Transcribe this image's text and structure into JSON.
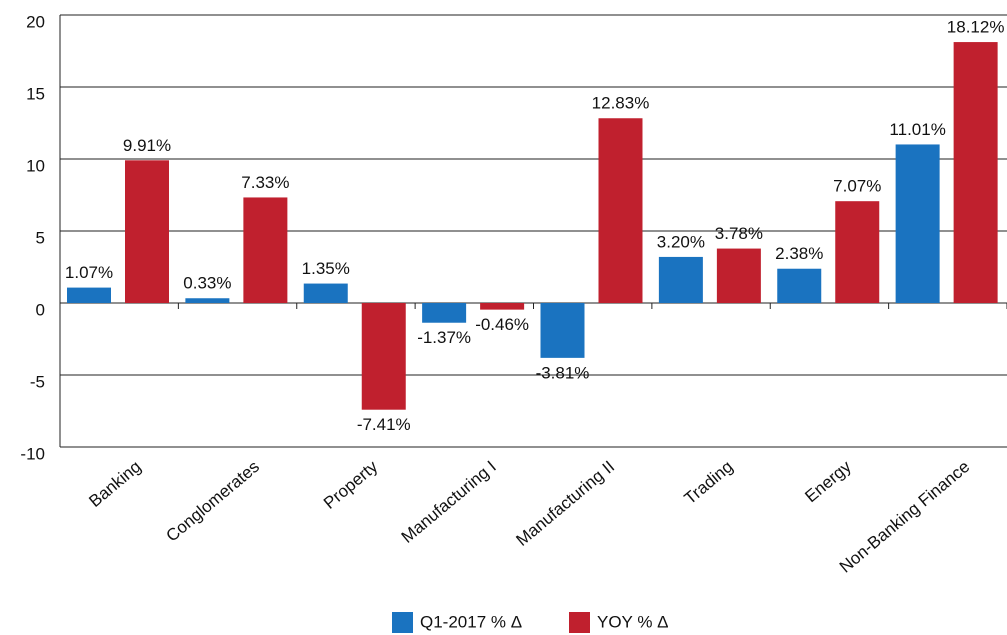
{
  "chart_data": {
    "type": "bar",
    "categories": [
      "Banking",
      "Conglomerates",
      "Property",
      "Manufacturing I",
      "Manufacturing II",
      "Trading",
      "Energy",
      "Non-Banking Finance"
    ],
    "series": [
      {
        "name": "Q1-2017 % Δ",
        "color": "#1a73c0",
        "values": [
          1.07,
          0.33,
          1.35,
          -1.37,
          -3.81,
          3.2,
          2.38,
          11.01
        ],
        "value_labels": [
          "1.07%",
          "0.33%",
          "1.35%",
          "-1.37%",
          "-3.81%",
          "3.20%",
          "2.38%",
          "11.01%"
        ]
      },
      {
        "name": "YOY % Δ",
        "color": "#c0202e",
        "values": [
          9.91,
          7.33,
          -7.41,
          -0.46,
          12.83,
          3.78,
          7.07,
          18.12
        ],
        "value_labels": [
          "9.91%",
          "7.33%",
          "-7.41%",
          "-0.46%",
          "12.83%",
          "3.78%",
          "7.07%",
          "18.12%"
        ]
      }
    ],
    "ylim": [
      -10,
      20
    ],
    "yticks": [
      -10,
      -5,
      0,
      5,
      10,
      15,
      20
    ],
    "grid": true,
    "legend": "bottom"
  }
}
